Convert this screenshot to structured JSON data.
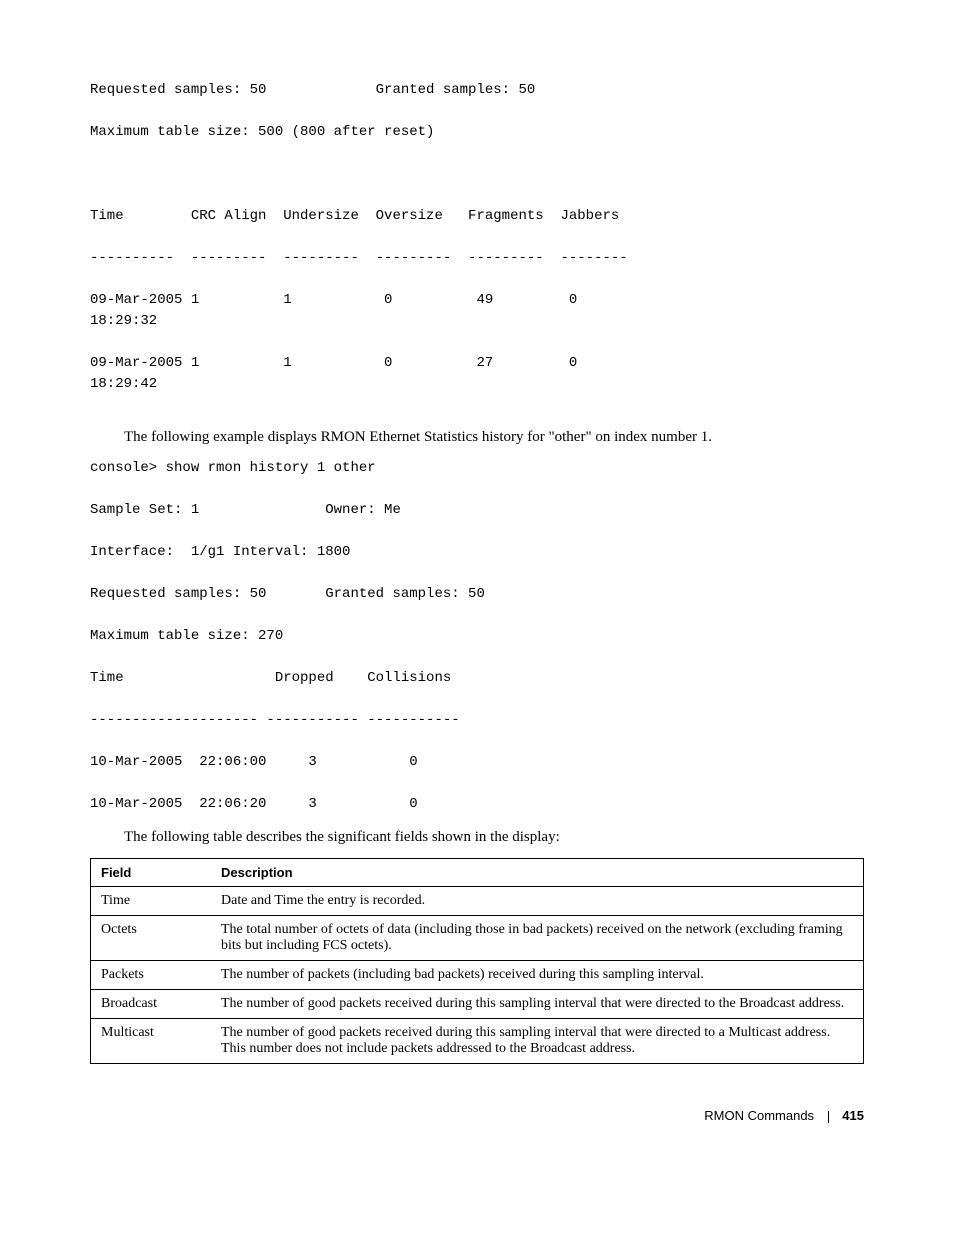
{
  "block1": {
    "lines": [
      "Requested samples: 50             Granted samples: 50",
      "",
      "Maximum table size: 500 (800 after reset)",
      "",
      "",
      "",
      "Time        CRC Align  Undersize  Oversize   Fragments  Jabbers",
      "",
      "----------  ---------  ---------  ---------  ---------  --------",
      "",
      "09-Mar-2005 1          1           0          49         0",
      "18:29:32",
      "",
      "09-Mar-2005 1          1           0          27         0",
      "18:29:42"
    ]
  },
  "para1": "The following example displays RMON Ethernet Statistics history for \"other\" on index number 1.",
  "block2": {
    "lines": [
      "console> show rmon history 1 other",
      "",
      "Sample Set: 1               Owner: Me",
      "",
      "Interface:  1/g1 Interval: 1800",
      "",
      "Requested samples: 50       Granted samples: 50",
      "",
      "Maximum table size: 270",
      "",
      "Time                  Dropped    Collisions",
      "",
      "-------------------- ----------- -----------",
      "",
      "10-Mar-2005  22:06:00     3           0",
      "",
      "10-Mar-2005  22:06:20     3           0"
    ]
  },
  "para2": "The following table describes the significant fields shown in the display:",
  "table": {
    "headers": [
      "Field",
      "Description"
    ],
    "rows": [
      [
        "Time",
        "Date and Time the entry is recorded."
      ],
      [
        "Octets",
        "The total number of octets of data (including those in bad packets) received on the network (excluding framing bits but including FCS octets)."
      ],
      [
        "Packets",
        "The number of packets (including bad packets) received during this sampling interval."
      ],
      [
        "Broadcast",
        "The number of good packets received during this sampling interval that were directed to the Broadcast address."
      ],
      [
        "Multicast",
        "The number of good packets received during this sampling interval that were directed to a Multicast address. This number does not include packets addressed to the Broadcast address."
      ]
    ]
  },
  "footer": {
    "section": "RMON Commands",
    "page": "415"
  }
}
